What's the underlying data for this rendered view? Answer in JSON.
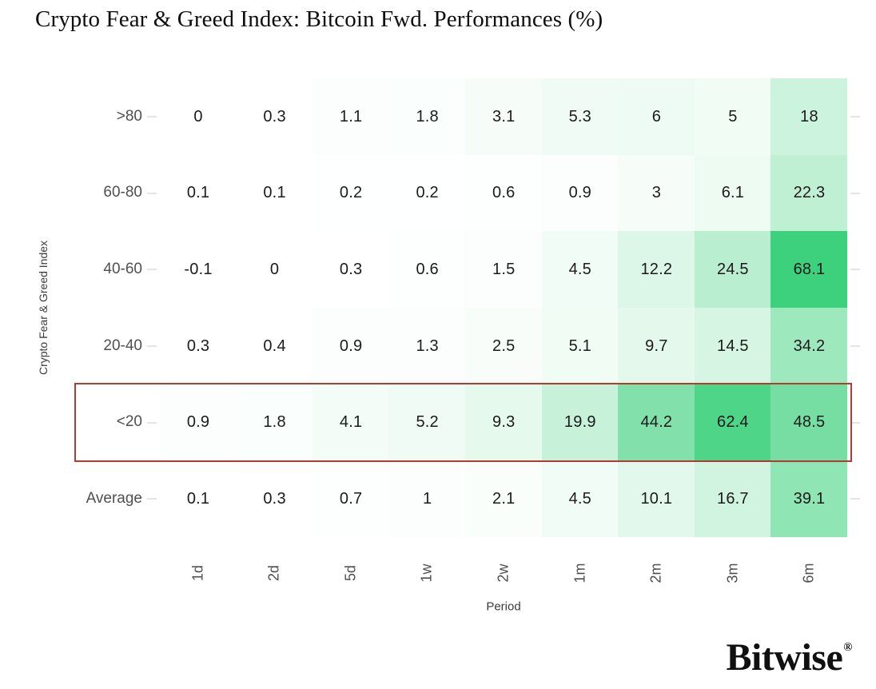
{
  "title": "Crypto Fear & Greed Index: Bitcoin Fwd. Performances (%)",
  "chart_data": {
    "type": "heatmap",
    "title": "Crypto Fear & Greed Index: Bitcoin Fwd. Performances (%)",
    "xlabel": "Period",
    "ylabel": "Crypto Fear & Greed Index",
    "x_categories": [
      "1d",
      "2d",
      "5d",
      "1w",
      "2w",
      "1m",
      "2m",
      "3m",
      "6m"
    ],
    "y_categories": [
      ">80",
      "60-80",
      "40-60",
      "20-40",
      "<20",
      "Average"
    ],
    "series": [
      {
        "name": ">80",
        "values": [
          0,
          0.3,
          1.1,
          1.8,
          3.1,
          5.3,
          6,
          5,
          18
        ]
      },
      {
        "name": "60-80",
        "values": [
          0.1,
          0.1,
          0.2,
          0.2,
          0.6,
          0.9,
          3,
          6.1,
          22.3
        ]
      },
      {
        "name": "40-60",
        "values": [
          -0.1,
          0,
          0.3,
          0.6,
          1.5,
          4.5,
          12.2,
          24.5,
          68.1
        ]
      },
      {
        "name": "20-40",
        "values": [
          0.3,
          0.4,
          0.9,
          1.3,
          2.5,
          5.1,
          9.7,
          14.5,
          34.2
        ]
      },
      {
        "name": "<20",
        "values": [
          0.9,
          1.8,
          4.1,
          5.2,
          9.3,
          19.9,
          44.2,
          62.4,
          48.5
        ]
      },
      {
        "name": "Average",
        "values": [
          0.1,
          0.3,
          0.7,
          1,
          2.1,
          4.5,
          10.1,
          16.7,
          39.1
        ]
      }
    ],
    "color_scale": {
      "min_color": "#ffffff",
      "max_color": "#3ed17d",
      "min_value": 0,
      "max_value": 68.1
    },
    "highlighted_row": "<20",
    "highlight_border_color": "#b23b32",
    "legend": "none",
    "grid": "off"
  },
  "branding": {
    "logo_text": "Bitwise",
    "registered_mark": "®"
  }
}
